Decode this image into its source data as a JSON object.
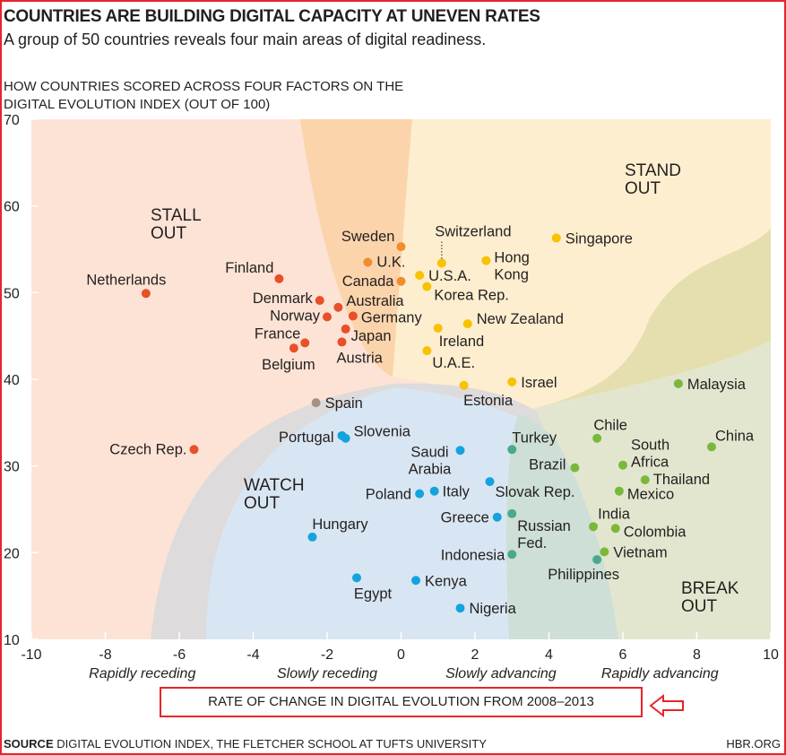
{
  "header": {
    "title": "COUNTRIES ARE BUILDING DIGITAL CAPACITY AT UNEVEN RATES",
    "subtitle": "A group of 50 countries reveals four main areas of digital readiness."
  },
  "footer": {
    "source_label": "SOURCE",
    "source_text": "DIGITAL EVOLUTION INDEX, THE FLETCHER SCHOOL AT TUFTS UNIVERSITY",
    "credit": "HBR.ORG"
  },
  "chart_data": {
    "type": "scatter",
    "title": "HOW COUNTRIES SCORED ACROSS FOUR FACTORS ON THE DIGITAL EVOLUTION INDEX (OUT OF 100)",
    "title_lines": [
      "HOW COUNTRIES SCORED ACROSS FOUR FACTORS ON THE",
      "DIGITAL EVOLUTION INDEX (OUT OF 100)"
    ],
    "xlabel": "RATE OF CHANGE IN DIGITAL EVOLUTION FROM 2008–2013",
    "xlim": [
      -10,
      10
    ],
    "ylim": [
      10,
      70
    ],
    "xticks": [
      -10,
      -8,
      -6,
      -4,
      -2,
      0,
      2,
      4,
      6,
      8,
      10
    ],
    "yticks": [
      10,
      20,
      30,
      40,
      50,
      60,
      70
    ],
    "x_category_labels": [
      "Rapidly receding",
      "Slowly receding",
      "Slowly advancing",
      "Rapidly advancing"
    ],
    "regions": [
      {
        "label": "STALL OUT",
        "color": "#fde3d5"
      },
      {
        "label": "STAND OUT",
        "color": "#fdeecf"
      },
      {
        "label": "WATCH OUT",
        "color": "#d8e6f3"
      },
      {
        "label": "BREAK OUT",
        "color": "#e3e6cf"
      }
    ],
    "group_colors": {
      "stall": "#e8502a",
      "stall-stand": "#f08d2c",
      "stand": "#f7c200",
      "break": "#7ab83a",
      "watch-break": "#4aa98a",
      "watch": "#15a3dd",
      "stall-watch": "#a39184"
    },
    "points": [
      {
        "name": "Netherlands",
        "x": -6.9,
        "y": 49.9,
        "group": "stall"
      },
      {
        "name": "Czech Rep.",
        "x": -5.6,
        "y": 31.9,
        "group": "stall"
      },
      {
        "name": "Finland",
        "x": -3.3,
        "y": 51.6,
        "group": "stall"
      },
      {
        "name": "Denmark",
        "x": -2.2,
        "y": 49.1,
        "group": "stall"
      },
      {
        "name": "Australia",
        "x": -1.7,
        "y": 48.3,
        "group": "stall"
      },
      {
        "name": "Norway",
        "x": -2.0,
        "y": 47.2,
        "group": "stall"
      },
      {
        "name": "Germany",
        "x": -1.3,
        "y": 47.3,
        "group": "stall"
      },
      {
        "name": "Japan",
        "x": -1.5,
        "y": 45.8,
        "group": "stall"
      },
      {
        "name": "France",
        "x": -2.6,
        "y": 44.2,
        "group": "stall"
      },
      {
        "name": "Belgium",
        "x": -2.9,
        "y": 43.6,
        "group": "stall"
      },
      {
        "name": "Austria",
        "x": -1.6,
        "y": 44.3,
        "group": "stall"
      },
      {
        "name": "Sweden",
        "x": 0.0,
        "y": 55.3,
        "group": "stall-stand"
      },
      {
        "name": "U.K.",
        "x": -0.9,
        "y": 53.5,
        "group": "stall-stand"
      },
      {
        "name": "Canada",
        "x": 0.0,
        "y": 51.3,
        "group": "stall-stand"
      },
      {
        "name": "Switzerland",
        "x": 1.1,
        "y": 53.4,
        "group": "stand"
      },
      {
        "name": "U.S.A.",
        "x": 0.5,
        "y": 52.0,
        "group": "stand"
      },
      {
        "name": "Korea Rep.",
        "x": 0.7,
        "y": 50.7,
        "group": "stand"
      },
      {
        "name": "Hong Kong",
        "x": 2.3,
        "y": 53.7,
        "group": "stand"
      },
      {
        "name": "Singapore",
        "x": 4.2,
        "y": 56.3,
        "group": "stand"
      },
      {
        "name": "New Zealand",
        "x": 1.8,
        "y": 46.4,
        "group": "stand"
      },
      {
        "name": "Ireland",
        "x": 1.0,
        "y": 45.9,
        "group": "stand"
      },
      {
        "name": "U.A.E.",
        "x": 0.7,
        "y": 43.3,
        "group": "stand"
      },
      {
        "name": "Estonia",
        "x": 1.7,
        "y": 39.3,
        "group": "stand"
      },
      {
        "name": "Israel",
        "x": 3.0,
        "y": 39.7,
        "group": "stand"
      },
      {
        "name": "Malaysia",
        "x": 7.5,
        "y": 39.5,
        "group": "break"
      },
      {
        "name": "Spain",
        "x": -2.3,
        "y": 37.3,
        "group": "stall-watch"
      },
      {
        "name": "Portugal",
        "x": -1.6,
        "y": 33.5,
        "group": "watch"
      },
      {
        "name": "Slovenia",
        "x": -1.5,
        "y": 33.2,
        "group": "watch"
      },
      {
        "name": "Saudi Arabia",
        "x": 1.6,
        "y": 31.8,
        "group": "watch"
      },
      {
        "name": "Turkey",
        "x": 3.0,
        "y": 31.9,
        "group": "watch-break"
      },
      {
        "name": "Chile",
        "x": 5.3,
        "y": 33.2,
        "group": "break"
      },
      {
        "name": "China",
        "x": 8.4,
        "y": 32.2,
        "group": "break"
      },
      {
        "name": "South Africa",
        "x": 6.0,
        "y": 30.1,
        "group": "break"
      },
      {
        "name": "Brazil",
        "x": 4.7,
        "y": 29.8,
        "group": "break"
      },
      {
        "name": "Thailand",
        "x": 6.6,
        "y": 28.4,
        "group": "break"
      },
      {
        "name": "Slovak Rep.",
        "x": 2.4,
        "y": 28.2,
        "group": "watch"
      },
      {
        "name": "Mexico",
        "x": 5.9,
        "y": 27.1,
        "group": "break"
      },
      {
        "name": "Italy",
        "x": 0.9,
        "y": 27.1,
        "group": "watch"
      },
      {
        "name": "Poland",
        "x": 0.5,
        "y": 26.8,
        "group": "watch"
      },
      {
        "name": "Greece",
        "x": 2.6,
        "y": 24.1,
        "group": "watch"
      },
      {
        "name": "Russian Fed.",
        "x": 3.0,
        "y": 24.5,
        "group": "watch-break"
      },
      {
        "name": "India",
        "x": 5.2,
        "y": 23.0,
        "group": "break"
      },
      {
        "name": "Colombia",
        "x": 5.8,
        "y": 22.8,
        "group": "break"
      },
      {
        "name": "Hungary",
        "x": -2.4,
        "y": 21.8,
        "group": "watch"
      },
      {
        "name": "Vietnam",
        "x": 5.5,
        "y": 20.1,
        "group": "break"
      },
      {
        "name": "Indonesia",
        "x": 3.0,
        "y": 19.8,
        "group": "watch-break"
      },
      {
        "name": "Philippines",
        "x": 5.3,
        "y": 19.2,
        "group": "watch-break"
      },
      {
        "name": "Egypt",
        "x": -1.2,
        "y": 17.1,
        "group": "watch"
      },
      {
        "name": "Kenya",
        "x": 0.4,
        "y": 16.8,
        "group": "watch"
      },
      {
        "name": "Nigeria",
        "x": 1.6,
        "y": 13.6,
        "group": "watch"
      }
    ]
  }
}
